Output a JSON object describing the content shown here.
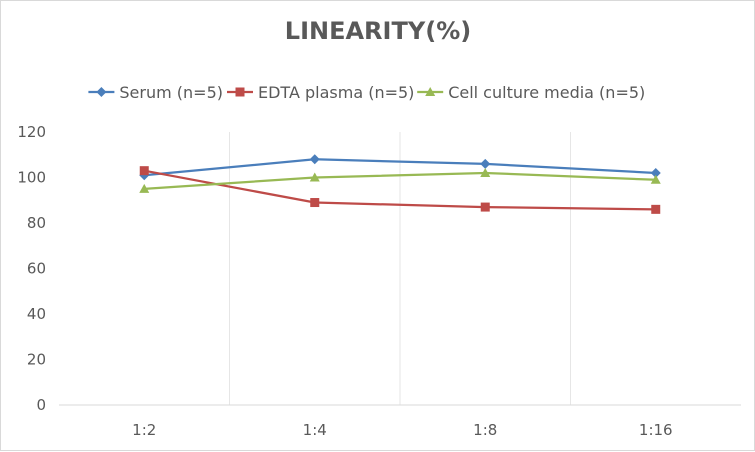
{
  "chart_data": {
    "type": "line",
    "title": "LINEARITY(%)",
    "xlabel": "",
    "ylabel": "",
    "categories": [
      "1:2",
      "1:4",
      "1:8",
      "1:16"
    ],
    "ylim": [
      0,
      120
    ],
    "yticks": [
      0,
      20,
      40,
      60,
      80,
      100,
      120
    ],
    "grid": "vertical-category-lines",
    "legend_position": "top",
    "series": [
      {
        "name": "Serum (n=5)",
        "values": [
          101,
          108,
          106,
          102
        ],
        "color": "#4a7ebb",
        "marker": "diamond"
      },
      {
        "name": "EDTA plasma (n=5)",
        "values": [
          103,
          89,
          87,
          86
        ],
        "color": "#be4b48",
        "marker": "square"
      },
      {
        "name": "Cell culture media (n=5)",
        "values": [
          95,
          100,
          102,
          99
        ],
        "color": "#98b954",
        "marker": "triangle"
      }
    ]
  }
}
